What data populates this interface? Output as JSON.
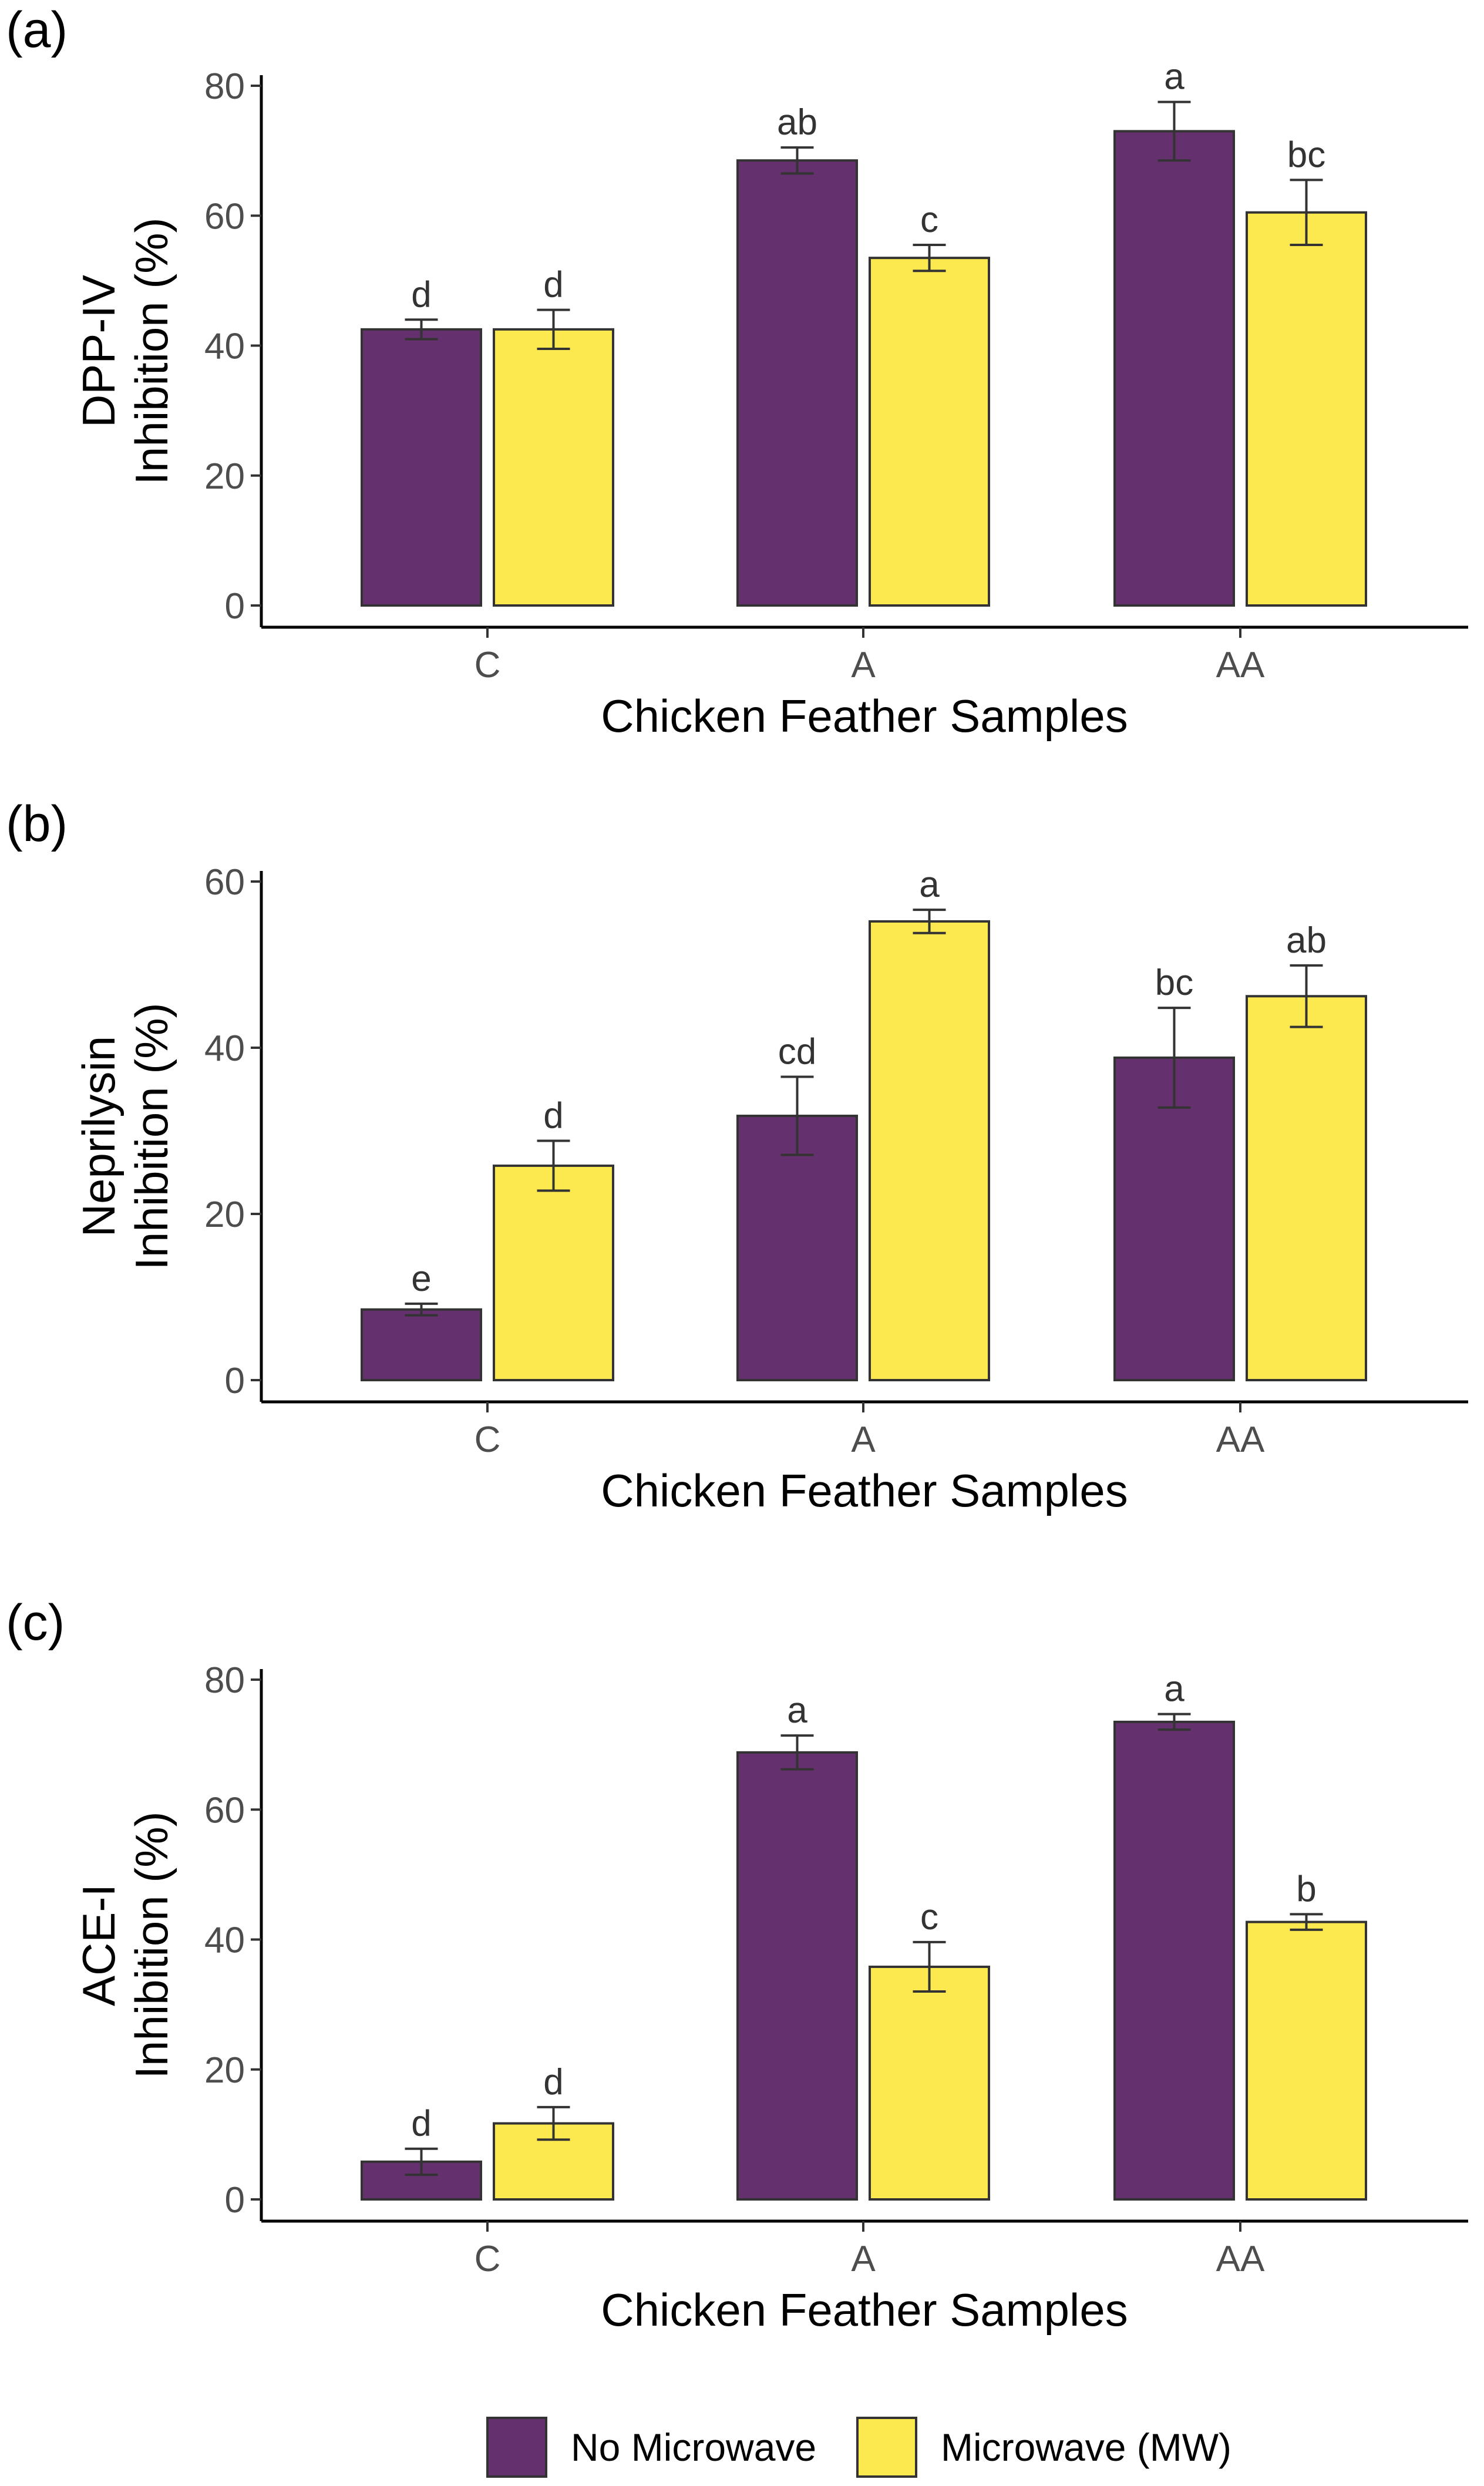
{
  "legend": {
    "items": [
      {
        "label": "No Microwave",
        "color": "#65306E"
      },
      {
        "label": "Microwave (MW)",
        "color": "#FCE94F"
      }
    ]
  },
  "chart_data": [
    {
      "panel": "(a)",
      "type": "bar",
      "categories": [
        "C",
        "A",
        "AA"
      ],
      "xlabel": "Chicken Feather Samples",
      "ylabel_lines": [
        "DPP-IV",
        "Inhibition (%)"
      ],
      "ylim": [
        0,
        80
      ],
      "yticks": [
        0,
        20,
        40,
        60,
        80
      ],
      "series": [
        {
          "name": "No Microwave",
          "color": "#65306E",
          "values": [
            42.5,
            68.5,
            73
          ],
          "errors": [
            1.5,
            2,
            4.5
          ],
          "letters": [
            "d",
            "ab",
            "a"
          ]
        },
        {
          "name": "Microwave (MW)",
          "color": "#FCE94F",
          "values": [
            42.5,
            53.5,
            60.5
          ],
          "errors": [
            3,
            2,
            5
          ],
          "letters": [
            "d",
            "c",
            "bc"
          ]
        }
      ]
    },
    {
      "panel": "(b)",
      "type": "bar",
      "categories": [
        "C",
        "A",
        "AA"
      ],
      "xlabel": "Chicken Feather Samples",
      "ylabel_lines": [
        "Neprilysin",
        "Inhibition (%)"
      ],
      "ylim": [
        0,
        60
      ],
      "yticks": [
        0,
        20,
        40,
        60
      ],
      "series": [
        {
          "name": "No Microwave",
          "color": "#65306E",
          "values": [
            8.5,
            31.8,
            38.8
          ],
          "errors": [
            0.7,
            4.7,
            6
          ],
          "letters": [
            "e",
            "cd",
            "bc"
          ]
        },
        {
          "name": "Microwave (MW)",
          "color": "#FCE94F",
          "values": [
            25.8,
            55.2,
            46.2
          ],
          "errors": [
            3,
            1.4,
            3.7
          ],
          "letters": [
            "d",
            "a",
            "ab"
          ]
        }
      ]
    },
    {
      "panel": "(c)",
      "type": "bar",
      "categories": [
        "C",
        "A",
        "AA"
      ],
      "xlabel": "Chicken Feather Samples",
      "ylabel_lines": [
        "ACE-I",
        "Inhibition (%)"
      ],
      "ylim": [
        0,
        80
      ],
      "yticks": [
        0,
        20,
        40,
        60,
        80
      ],
      "series": [
        {
          "name": "No Microwave",
          "color": "#65306E",
          "values": [
            5.8,
            68.8,
            73.5
          ],
          "errors": [
            2,
            2.6,
            1.2
          ],
          "letters": [
            "d",
            "a",
            "a"
          ]
        },
        {
          "name": "Microwave (MW)",
          "color": "#FCE94F",
          "values": [
            11.7,
            35.8,
            42.7
          ],
          "errors": [
            2.5,
            3.8,
            1.2
          ],
          "letters": [
            "d",
            "c",
            "b"
          ]
        }
      ]
    }
  ]
}
